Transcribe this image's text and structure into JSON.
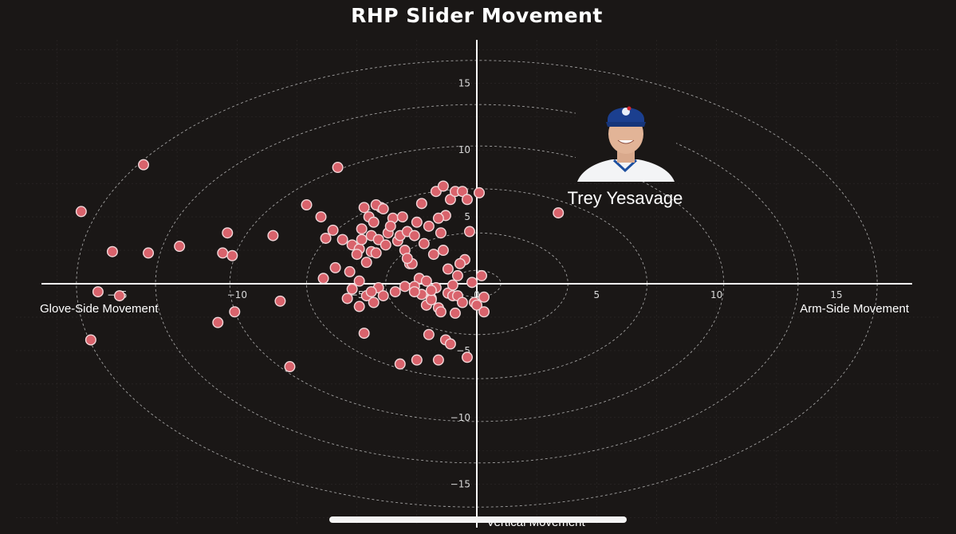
{
  "chart_data": {
    "type": "scatter",
    "title": "RHP Slider Movement",
    "xlabel_left": "Glove-Side Movement",
    "xlabel_right": "Arm-Side Movement",
    "ylabel": "Vertical Movement",
    "xlim": [
      -18,
      18
    ],
    "ylim": [
      -18,
      18
    ],
    "xticks": [
      -15,
      -10,
      -5,
      0,
      5,
      10,
      15
    ],
    "yticks": [
      -15,
      -10,
      -5,
      0,
      5,
      10,
      15
    ],
    "grid": true,
    "ring_radii_x": [
      1,
      3.8,
      7.1,
      10.3,
      13.4,
      16.7
    ],
    "ring_radii_y": [
      1,
      3.8,
      7.1,
      10.3,
      13.4,
      16.7
    ],
    "colors": {
      "background": "#1a1716",
      "point_fill": "#d9636c",
      "point_stroke": "#f2d8da",
      "axis": "#ffffff",
      "ring": "#cfcfcf",
      "grid": "#2e2a2a"
    },
    "x": [
      -16.5,
      -13.9,
      -15.2,
      -13.7,
      -12.4,
      -16.1,
      -15.8,
      -14.9,
      -10.4,
      -10.6,
      -10.2,
      -10.8,
      -10.1,
      -8.2,
      -8.5,
      -7.8,
      -7.1,
      -6.5,
      -5.8,
      -6.0,
      -5.6,
      -6.3,
      -5.2,
      -4.8,
      -5.9,
      -6.4,
      -5.3,
      -4.4,
      -4.0,
      -4.9,
      -5.0,
      -4.6,
      -4.2,
      -3.9,
      -3.5,
      -3.3,
      -3.0,
      -2.8,
      -2.4,
      -2.1,
      -1.7,
      -1.2,
      -1.0,
      -0.8,
      -0.5,
      -0.3,
      -0.1,
      0.1,
      -4.7,
      -4.5,
      -4.3,
      -4.8,
      -3.7,
      -3.6,
      -4.1,
      -4.4,
      -3.2,
      -2.9,
      -2.6,
      -2.2,
      -1.8,
      -1.5,
      -1.3,
      -2.5,
      -2.0,
      -1.6,
      -1.1,
      -0.9,
      -0.6,
      -0.4,
      -3.1,
      -3.8,
      -4.2,
      -2.7,
      -1.4,
      -1.2,
      -0.7,
      0.2,
      -4.1,
      -3.4,
      -2.3,
      -1.9,
      -0.2,
      0.3,
      -5.4,
      -4.9,
      -4.6,
      -3.9,
      -2.1,
      -1.6,
      -0.9,
      0.0,
      -4.4,
      -3.0,
      -2.6,
      -1.0,
      -0.8,
      -2.9,
      -1.9,
      -4.9,
      -5.2,
      -4.7,
      -3.2,
      -1.6,
      -2.5,
      -2.0,
      -1.3,
      -1.1,
      -0.4,
      -0.6,
      -1.9,
      -2.6,
      -4.3,
      -1.5,
      0.3,
      3.4,
      -2.3,
      -1.7,
      -1.4
    ],
    "y": [
      5.4,
      8.9,
      2.4,
      2.3,
      2.8,
      -4.2,
      -0.6,
      -0.9,
      3.8,
      2.3,
      2.1,
      -2.9,
      -2.1,
      -1.3,
      3.6,
      -6.2,
      5.9,
      5.0,
      8.7,
      4.0,
      3.3,
      3.4,
      2.9,
      4.1,
      1.2,
      0.4,
      0.9,
      3.6,
      5.7,
      2.6,
      2.2,
      1.6,
      5.9,
      5.6,
      4.9,
      3.2,
      2.5,
      1.5,
      0.4,
      0.2,
      -0.3,
      -0.7,
      -0.1,
      0.6,
      1.8,
      3.9,
      -1.4,
      6.8,
      5.7,
      5.0,
      4.6,
      3.3,
      3.8,
      4.3,
      3.3,
      2.4,
      3.6,
      3.9,
      3.6,
      3.0,
      2.2,
      3.8,
      5.1,
      4.6,
      4.3,
      4.9,
      6.3,
      6.9,
      6.9,
      6.3,
      5.0,
      2.9,
      2.3,
      1.5,
      2.5,
      1.1,
      1.5,
      0.6,
      -0.3,
      -0.6,
      -0.8,
      -1.1,
      0.1,
      -1.0,
      -1.1,
      -1.7,
      -0.9,
      -0.9,
      -1.6,
      -1.8,
      -2.2,
      -1.6,
      -0.6,
      -0.2,
      -0.2,
      -0.9,
      -0.9,
      1.9,
      -1.2,
      0.2,
      -0.4,
      -3.7,
      -6.0,
      -5.7,
      -5.7,
      -3.8,
      -4.2,
      -4.5,
      -5.5,
      -1.4,
      -0.5,
      -0.6,
      -1.4,
      -2.1,
      -2.1,
      5.3,
      6.0,
      6.9,
      7.3
    ],
    "annotations": [
      {
        "text": "Trey Yesavage"
      }
    ]
  }
}
